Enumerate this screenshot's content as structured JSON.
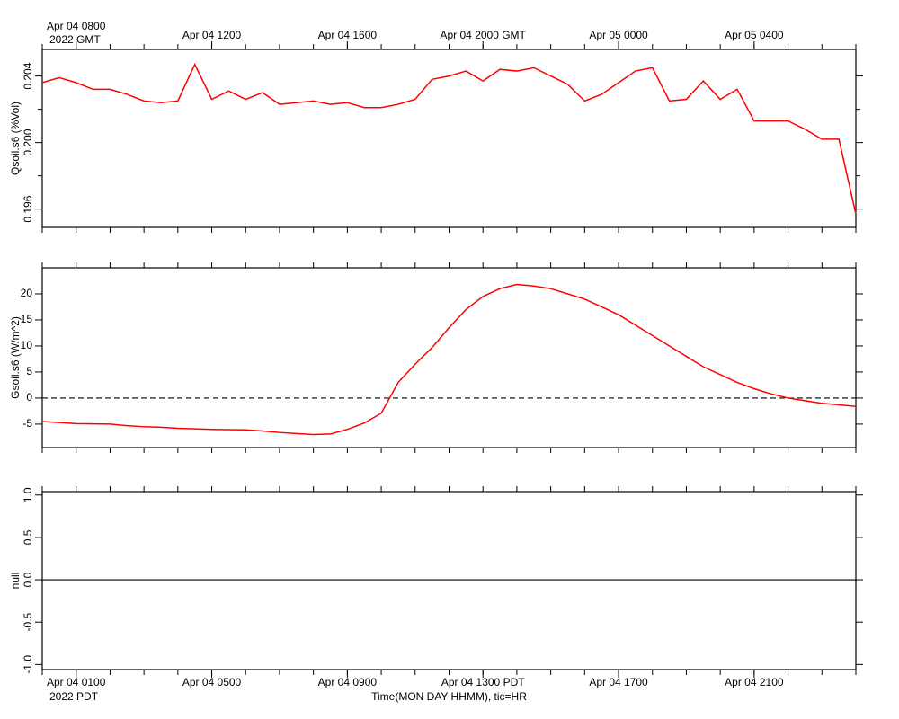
{
  "chart_data": [
    {
      "type": "line",
      "ylabel": "Qsoil.s6 (%Vol)",
      "x_sublabel": "2022 GMT",
      "xtick_step": 1,
      "ytick_rotate": true,
      "xlim": [
        0,
        24
      ],
      "ylim": [
        0.1949,
        0.2056
      ],
      "xticks": [
        {
          "value": 1,
          "label": "Apr 04 0800"
        },
        {
          "value": 5,
          "label": "Apr 04 1200"
        },
        {
          "value": 9,
          "label": "Apr 04 1600"
        },
        {
          "value": 13,
          "label": "Apr 04 2000 GMT"
        },
        {
          "value": 17,
          "label": "Apr 05 0000"
        },
        {
          "value": 21,
          "label": "Apr 05 0400"
        }
      ],
      "yticks": [
        0.196,
        {
          "value": 0.2,
          "label": "0.200"
        },
        0.204
      ],
      "yminor": [
        0.198,
        0.202
      ],
      "x": [
        0,
        0.5,
        1,
        1.5,
        2,
        2.5,
        3,
        3.5,
        4,
        4.5,
        5,
        5.5,
        6,
        6.5,
        7,
        7.5,
        8,
        8.5,
        9,
        9.5,
        10,
        10.5,
        11,
        11.5,
        12,
        12.5,
        13,
        13.5,
        14,
        14.5,
        15,
        15.5,
        16,
        16.5,
        17,
        17.5,
        18,
        18.5,
        19,
        19.5,
        20,
        20.5,
        21,
        21.5,
        22,
        22.5,
        23,
        23.5,
        24
      ],
      "series": [
        {
          "name": "Qsoil.s6",
          "color": "#ff0000",
          "values": [
            0.2036,
            0.2039,
            0.2036,
            0.2032,
            0.2032,
            0.2029,
            0.2025,
            0.2024,
            0.2025,
            0.2047,
            0.2026,
            0.2031,
            0.2026,
            0.203,
            0.2023,
            0.2024,
            0.2025,
            0.2023,
            0.2024,
            0.2021,
            0.2021,
            0.2023,
            0.2026,
            0.2038,
            0.204,
            0.2043,
            0.2037,
            0.2044,
            0.2043,
            0.2045,
            0.204,
            0.2035,
            0.2025,
            0.2029,
            0.2036,
            0.2043,
            0.2045,
            0.2025,
            0.2026,
            0.2037,
            0.2026,
            0.2032,
            0.2013,
            0.2013,
            0.2013,
            0.2008,
            0.2002,
            0.2002,
            0.1957
          ]
        }
      ]
    },
    {
      "type": "line",
      "ylabel": "Gsoil.s6 (W/m^2)",
      "xtick_step": 1,
      "zero_line": "dashed",
      "xlim": [
        0,
        24
      ],
      "ylim": [
        -9.5,
        25
      ],
      "yticks": [
        -5,
        0,
        5,
        10,
        15,
        20
      ],
      "x": [
        0,
        0.5,
        1,
        1.5,
        2,
        2.5,
        3,
        3.5,
        4,
        4.5,
        5,
        5.5,
        6,
        6.5,
        7,
        7.5,
        8,
        8.5,
        9,
        9.5,
        10,
        10.5,
        11,
        11.5,
        12,
        12.5,
        13,
        13.5,
        14,
        14.5,
        15,
        15.5,
        16,
        16.5,
        17,
        17.5,
        18,
        18.5,
        19,
        19.5,
        20,
        20.5,
        21,
        21.5,
        22,
        22.5,
        23,
        23.5,
        24
      ],
      "series": [
        {
          "name": "Gsoil.s6",
          "color": "#ff0000",
          "values": [
            -4.5,
            -4.7,
            -4.9,
            -4.95,
            -5.0,
            -5.3,
            -5.5,
            -5.6,
            -5.8,
            -5.9,
            -6.0,
            -6.05,
            -6.1,
            -6.3,
            -6.6,
            -6.8,
            -7.0,
            -6.9,
            -6.0,
            -4.8,
            -2.9,
            3.0,
            6.5,
            9.7,
            13.5,
            17.0,
            19.5,
            21.0,
            21.8,
            21.5,
            21.0,
            20.0,
            19.0,
            17.5,
            16.0,
            14.0,
            12.0,
            10.0,
            8.0,
            6.0,
            4.5,
            3.0,
            1.8,
            0.8,
            0.0,
            -0.5,
            -1.0,
            -1.3,
            -1.6
          ]
        }
      ]
    },
    {
      "type": "line",
      "ylabel": "null",
      "x_sublabel": "2022 PDT",
      "xlabel": "Time(MON DAY HHMM), tic=HR",
      "xtick_step": 1,
      "ytick_rotate": true,
      "zero_line": "solid",
      "xlim": [
        0,
        24
      ],
      "ylim": [
        -1.06,
        1.04
      ],
      "xticks": [
        {
          "value": 1,
          "label": "Apr 04 0100"
        },
        {
          "value": 5,
          "label": "Apr 04 0500"
        },
        {
          "value": 9,
          "label": "Apr 04 0900"
        },
        {
          "value": 13,
          "label": "Apr 04 1300 PDT"
        },
        {
          "value": 17,
          "label": "Apr 04 1700"
        },
        {
          "value": 21,
          "label": "Apr 04 2100"
        }
      ],
      "yticks": [
        {
          "value": -1,
          "label": "-1.0"
        },
        {
          "value": -0.5,
          "label": "-0.5"
        },
        {
          "value": 0,
          "label": "0.0"
        },
        {
          "value": 0.5,
          "label": "0.5"
        },
        {
          "value": 1,
          "label": "1.0"
        }
      ],
      "x": [],
      "series": []
    }
  ]
}
